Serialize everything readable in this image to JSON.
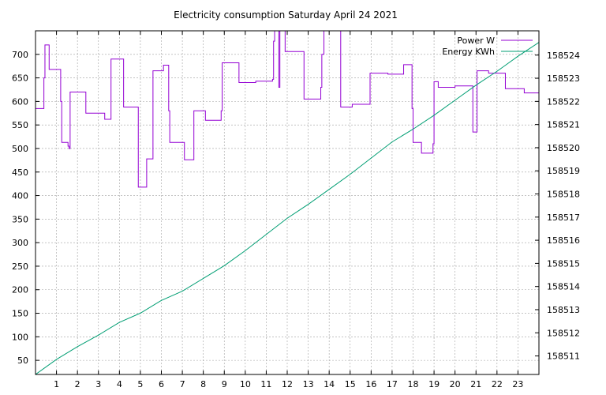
{
  "chart_data": {
    "type": "line",
    "title": "Electricity consumption Saturday April 24 2021",
    "x_ticks": [
      "1",
      "2",
      "3",
      "4",
      "5",
      "6",
      "7",
      "8",
      "9",
      "10",
      "11",
      "12",
      "13",
      "14",
      "15",
      "16",
      "17",
      "18",
      "19",
      "20",
      "21",
      "22",
      "23"
    ],
    "xlim": [
      0,
      24
    ],
    "y_left": {
      "ticks": [
        50,
        100,
        150,
        200,
        250,
        300,
        350,
        400,
        450,
        500,
        550,
        600,
        650,
        700
      ],
      "lim": [
        20,
        750
      ]
    },
    "y_right": {
      "ticks": [
        158511,
        158512,
        158513,
        158514,
        158515,
        158516,
        158517,
        158518,
        158519,
        158520,
        158521,
        158522,
        158523,
        158524
      ],
      "lim": [
        158510.2,
        158525.05
      ]
    },
    "grid": true,
    "legend_position": "top-right",
    "series": [
      {
        "name": "Power W",
        "axis": "left",
        "style": "step",
        "color": "#9400d3",
        "points": [
          [
            0.0,
            585
          ],
          [
            0.4,
            650
          ],
          [
            0.45,
            720
          ],
          [
            0.65,
            668
          ],
          [
            1.2,
            600
          ],
          [
            1.25,
            513
          ],
          [
            1.55,
            505
          ],
          [
            1.6,
            500
          ],
          [
            1.65,
            620
          ],
          [
            2.4,
            575
          ],
          [
            3.3,
            562
          ],
          [
            3.6,
            690
          ],
          [
            4.2,
            588
          ],
          [
            4.9,
            418
          ],
          [
            5.3,
            478
          ],
          [
            5.6,
            665
          ],
          [
            6.1,
            677
          ],
          [
            6.35,
            580
          ],
          [
            6.4,
            513
          ],
          [
            7.1,
            476
          ],
          [
            7.55,
            580
          ],
          [
            8.1,
            560
          ],
          [
            8.85,
            580
          ],
          [
            8.9,
            682
          ],
          [
            9.7,
            640
          ],
          [
            10.5,
            643
          ],
          [
            11.3,
            647
          ],
          [
            11.35,
            728
          ],
          [
            11.4,
            760
          ],
          [
            11.6,
            630
          ],
          [
            11.65,
            752
          ],
          [
            11.9,
            706
          ],
          [
            12.8,
            605
          ],
          [
            13.6,
            630
          ],
          [
            13.65,
            700
          ],
          [
            13.75,
            760
          ],
          [
            14.55,
            588
          ],
          [
            15.1,
            594
          ],
          [
            15.95,
            660
          ],
          [
            16.8,
            658
          ],
          [
            17.55,
            678
          ],
          [
            17.95,
            585
          ],
          [
            18.0,
            513
          ],
          [
            18.4,
            490
          ],
          [
            18.95,
            510
          ],
          [
            19.0,
            642
          ],
          [
            19.2,
            630
          ],
          [
            20.0,
            633
          ],
          [
            20.85,
            535
          ],
          [
            21.05,
            665
          ],
          [
            21.6,
            660
          ],
          [
            22.4,
            627
          ],
          [
            23.3,
            618
          ],
          [
            24.0,
            618
          ]
        ]
      },
      {
        "name": "Energy KWh",
        "axis": "right",
        "style": "line",
        "color": "#009e73",
        "points": [
          [
            0,
            158510.2
          ],
          [
            1,
            158510.85
          ],
          [
            2,
            158511.4
          ],
          [
            3,
            158511.9
          ],
          [
            4,
            158512.45
          ],
          [
            5,
            158512.85
          ],
          [
            6,
            158513.4
          ],
          [
            7,
            158513.8
          ],
          [
            8,
            158514.35
          ],
          [
            9,
            158514.9
          ],
          [
            10,
            158515.55
          ],
          [
            11,
            158516.25
          ],
          [
            12,
            158516.95
          ],
          [
            13,
            158517.55
          ],
          [
            14,
            158518.2
          ],
          [
            15,
            158518.85
          ],
          [
            16,
            158519.55
          ],
          [
            17,
            158520.25
          ],
          [
            18,
            158520.8
          ],
          [
            19,
            158521.4
          ],
          [
            20,
            158522.05
          ],
          [
            21,
            158522.7
          ],
          [
            22,
            158523.3
          ],
          [
            23,
            158523.95
          ],
          [
            24,
            158524.55
          ]
        ]
      }
    ]
  }
}
